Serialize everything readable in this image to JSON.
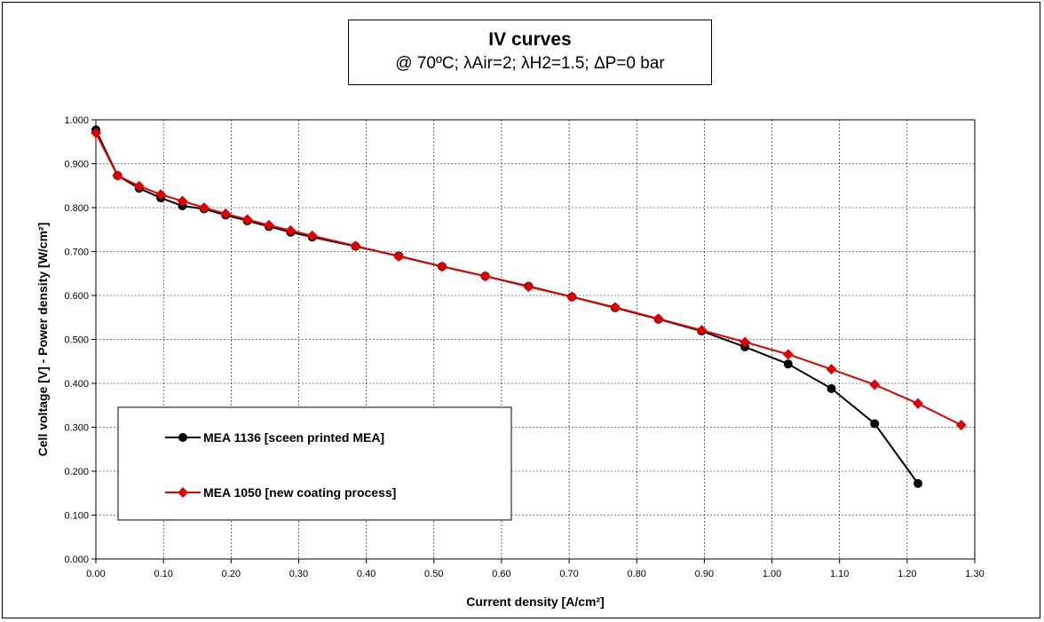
{
  "chart_data": {
    "type": "line",
    "title": "IV curves",
    "subtitle": "@ 70ºC; λAir=2; λH2=1.5; ΔP=0 bar",
    "xlabel": "Current density [A/cm²]",
    "ylabel": "Cell voltage [V] - Power density [W/cm²]",
    "xlim": [
      0,
      1.3
    ],
    "ylim": [
      0,
      1.0
    ],
    "x_ticks": [
      "0.00",
      "0.10",
      "0.20",
      "0.30",
      "0.40",
      "0.50",
      "0.60",
      "0.70",
      "0.80",
      "0.90",
      "1.00",
      "1.10",
      "1.20",
      "1.30"
    ],
    "y_ticks": [
      "0.000",
      "0.100",
      "0.200",
      "0.300",
      "0.400",
      "0.500",
      "0.600",
      "0.700",
      "0.800",
      "0.900",
      "1.000"
    ],
    "grid": true,
    "legend_position": "lower-left",
    "series": [
      {
        "name": "MEA 1136 [sceen printed MEA]",
        "color": "#000000",
        "marker": "circle",
        "x": [
          0.0,
          0.032,
          0.064,
          0.096,
          0.128,
          0.16,
          0.192,
          0.224,
          0.256,
          0.288,
          0.32,
          0.384,
          0.448,
          0.512,
          0.576,
          0.64,
          0.704,
          0.768,
          0.832,
          0.896,
          0.96,
          1.024,
          1.088,
          1.152,
          1.216
        ],
        "y": [
          0.977,
          0.873,
          0.844,
          0.822,
          0.804,
          0.797,
          0.783,
          0.77,
          0.757,
          0.744,
          0.733,
          0.712,
          0.69,
          0.666,
          0.644,
          0.621,
          0.597,
          0.572,
          0.546,
          0.519,
          0.483,
          0.444,
          0.388,
          0.308,
          0.172
        ]
      },
      {
        "name": "MEA 1050 [new coating process]",
        "color": "#e00000",
        "marker": "diamond",
        "x": [
          0.0,
          0.032,
          0.064,
          0.096,
          0.128,
          0.16,
          0.192,
          0.224,
          0.256,
          0.288,
          0.32,
          0.384,
          0.448,
          0.512,
          0.576,
          0.64,
          0.704,
          0.768,
          0.832,
          0.896,
          0.96,
          1.024,
          1.088,
          1.152,
          1.216,
          1.28
        ],
        "y": [
          0.97,
          0.873,
          0.849,
          0.83,
          0.815,
          0.8,
          0.786,
          0.773,
          0.76,
          0.748,
          0.736,
          0.713,
          0.689,
          0.666,
          0.644,
          0.62,
          0.597,
          0.573,
          0.547,
          0.521,
          0.494,
          0.466,
          0.432,
          0.397,
          0.354,
          0.305
        ]
      }
    ]
  }
}
